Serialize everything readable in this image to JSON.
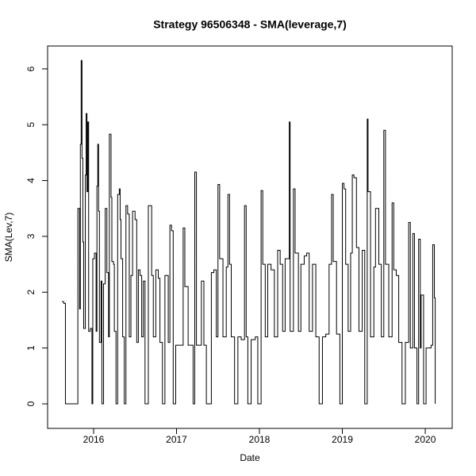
{
  "chart_data": {
    "type": "line",
    "step": true,
    "title": "Strategy 96506348 - SMA(leverage,7)",
    "x_label": "Date",
    "y_label": "SMA(Lev,7)",
    "xlim": [
      2015.445,
      2020.325
    ],
    "ylim": [
      -0.44,
      6.41
    ],
    "xticks": [
      2016,
      2017,
      2018,
      2019,
      2020
    ],
    "yticks": [
      0,
      1,
      2,
      3,
      4,
      5,
      6
    ],
    "grid": false,
    "x": [
      2015.617,
      2015.64,
      2015.66,
      2015.81,
      2015.83,
      2015.84,
      2015.85,
      2015.86,
      2015.87,
      2015.88,
      2015.9,
      2015.91,
      2015.92,
      2015.93,
      2015.94,
      2015.96,
      2015.98,
      2015.99,
      2016.01,
      2016.03,
      2016.04,
      2016.05,
      2016.06,
      2016.07,
      2016.09,
      2016.1,
      2016.12,
      2016.14,
      2016.16,
      2016.18,
      2016.19,
      2016.21,
      2016.22,
      2016.24,
      2016.25,
      2016.27,
      2016.29,
      2016.31,
      2016.32,
      2016.33,
      2016.35,
      2016.37,
      2016.39,
      2016.41,
      2016.43,
      2016.45,
      2016.47,
      2016.5,
      2016.52,
      2016.54,
      2016.56,
      2016.58,
      2016.6,
      2016.62,
      2016.66,
      2016.7,
      2016.72,
      2016.75,
      2016.78,
      2016.8,
      2016.83,
      2016.86,
      2016.9,
      2016.92,
      2016.94,
      2016.96,
      2016.99,
      2017.04,
      2017.08,
      2017.1,
      2017.14,
      2017.2,
      2017.22,
      2017.24,
      2017.3,
      2017.33,
      2017.36,
      2017.42,
      2017.45,
      2017.48,
      2017.5,
      2017.52,
      2017.56,
      2017.6,
      2017.62,
      2017.64,
      2017.66,
      2017.7,
      2017.74,
      2017.78,
      2017.82,
      2017.84,
      2017.86,
      2017.9,
      2017.95,
      2017.98,
      2018.02,
      2018.04,
      2018.07,
      2018.1,
      2018.14,
      2018.18,
      2018.22,
      2018.25,
      2018.28,
      2018.31,
      2018.36,
      2018.37,
      2018.41,
      2018.43,
      2018.47,
      2018.5,
      2018.54,
      2018.57,
      2018.6,
      2018.64,
      2018.68,
      2018.72,
      2018.76,
      2018.8,
      2018.84,
      2018.87,
      2018.89,
      2018.93,
      2018.97,
      2019.0,
      2019.02,
      2019.04,
      2019.07,
      2019.1,
      2019.12,
      2019.14,
      2019.17,
      2019.2,
      2019.24,
      2019.27,
      2019.3,
      2019.31,
      2019.34,
      2019.38,
      2019.4,
      2019.44,
      2019.47,
      2019.5,
      2019.52,
      2019.56,
      2019.6,
      2019.62,
      2019.65,
      2019.68,
      2019.72,
      2019.76,
      2019.8,
      2019.82,
      2019.85,
      2019.87,
      2019.9,
      2019.92,
      2019.94,
      2019.95,
      2019.98,
      2020.01,
      2020.04,
      2020.07,
      2020.09,
      2020.11,
      2020.12
    ],
    "series": [
      {
        "name": "SMA(Lev,7)",
        "color": "#000000",
        "values": [
          1.83,
          1.8,
          0,
          3.5,
          1.7,
          4.65,
          6.15,
          4.4,
          2.9,
          1.35,
          4.1,
          5.2,
          3.8,
          5.05,
          1.3,
          1.35,
          0,
          2.6,
          2.7,
          1.3,
          3.9,
          4.65,
          3.45,
          1.1,
          2.2,
          0,
          2.15,
          3.5,
          2.35,
          1.2,
          4.83,
          3.7,
          2.55,
          2.5,
          1.3,
          0,
          3.75,
          3.85,
          3.3,
          2.6,
          1.2,
          0,
          3.55,
          3.4,
          1.2,
          2.3,
          3.45,
          3.3,
          1.1,
          2.4,
          2.3,
          1.2,
          2.2,
          0,
          3.55,
          2.3,
          1.2,
          2.4,
          2.25,
          1.1,
          0,
          2.3,
          1.1,
          3.2,
          3.1,
          0,
          1.05,
          1.05,
          3.15,
          2.1,
          1.05,
          0,
          4.15,
          1.05,
          2.2,
          1.05,
          0,
          2.35,
          2.4,
          1.2,
          3.93,
          2.6,
          1.2,
          2.45,
          3.75,
          2.5,
          1.2,
          0,
          1.2,
          1.15,
          3.55,
          1.2,
          0,
          1.15,
          1.2,
          0,
          3.82,
          2.5,
          1.2,
          2.5,
          2.4,
          1.2,
          2.75,
          2.5,
          1.3,
          2.6,
          5.05,
          1.3,
          3.85,
          2.7,
          1.3,
          2.5,
          2.65,
          2.7,
          1.3,
          2.5,
          1.2,
          0,
          1.2,
          1.25,
          2.5,
          3.75,
          2.55,
          1.25,
          0,
          3.95,
          3.85,
          2.5,
          1.3,
          2.7,
          4.1,
          4.05,
          2.8,
          1.3,
          2.75,
          0,
          5.1,
          3.8,
          1.2,
          2.45,
          3.5,
          2.5,
          1.2,
          4.9,
          2.5,
          1.2,
          3.6,
          2.4,
          2.3,
          1.1,
          0,
          1.1,
          3.25,
          1.0,
          3.05,
          1.0,
          0,
          2.95,
          1.0,
          1.95,
          0,
          1.0,
          1.0,
          1.05,
          2.85,
          1.9,
          0
        ]
      }
    ]
  }
}
